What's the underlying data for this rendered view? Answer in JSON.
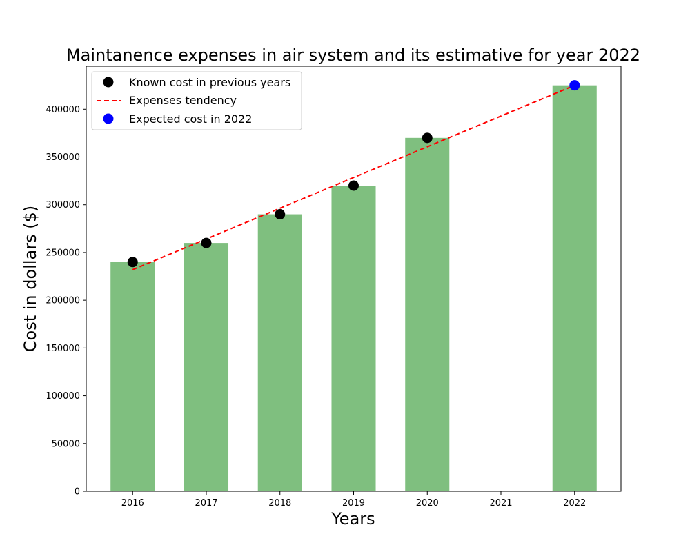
{
  "chart_data": {
    "type": "bar",
    "title": "Maintanence expenses in air system and its estimative for year 2022",
    "xlabel": "Years",
    "ylabel": "Cost in dollars ($)",
    "categories": [
      "2016",
      "2017",
      "2018",
      "2019",
      "2020",
      "2021",
      "2022"
    ],
    "bars": {
      "color": "#7fbf7f",
      "values": [
        240000,
        260000,
        290000,
        320000,
        370000,
        null,
        425000
      ]
    },
    "series": [
      {
        "name": "Known cost in previous years",
        "type": "scatter",
        "color": "#000000",
        "x": [
          2016,
          2017,
          2018,
          2019,
          2020
        ],
        "y": [
          240000,
          260000,
          290000,
          320000,
          370000
        ]
      },
      {
        "name": "Expenses tendency",
        "type": "line",
        "style": "dashed",
        "color": "#ff0000",
        "x": [
          2016,
          2022
        ],
        "y": [
          232000,
          425000
        ]
      },
      {
        "name": "Expected cost in 2022",
        "type": "scatter",
        "color": "#0000ff",
        "x": [
          2022
        ],
        "y": [
          425000
        ]
      }
    ],
    "yticks": [
      "0",
      "50000",
      "100000",
      "150000",
      "200000",
      "250000",
      "300000",
      "350000",
      "400000"
    ],
    "ylim": [
      0,
      445000
    ],
    "xlim": [
      2015.37,
      2022.63
    ],
    "grid": false,
    "legend_position": "top-left"
  }
}
